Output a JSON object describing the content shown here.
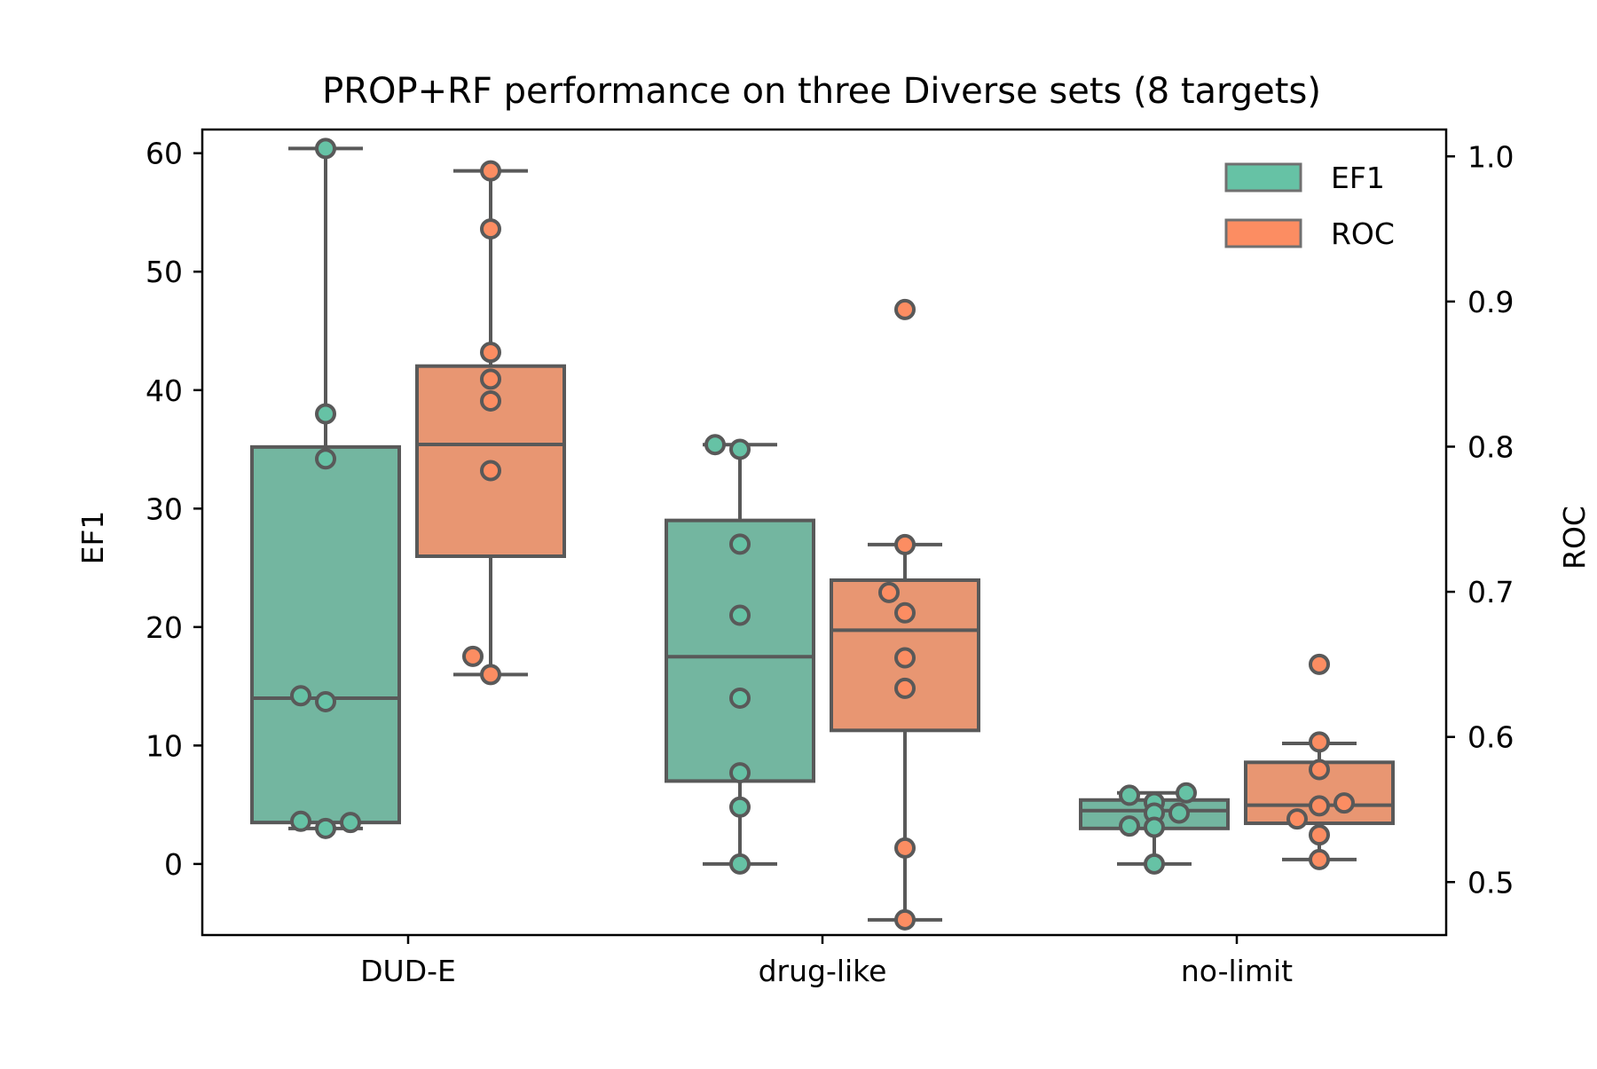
{
  "chart_data": {
    "type": "box",
    "title": "PROP+RF performance on three Diverse sets (8 targets)",
    "xlabel": "",
    "ylabel": "EF1",
    "y2label": "ROC",
    "categories": [
      "DUD-E",
      "drug-like",
      "no-limit"
    ],
    "ylim": [
      -6,
      62
    ],
    "y2lim": [
      0.4635,
      1.0185
    ],
    "yticks": [
      "0",
      "10",
      "20",
      "30",
      "40",
      "50",
      "60"
    ],
    "y2ticks": [
      "0.5",
      "0.6",
      "0.7",
      "0.8",
      "0.9",
      "1.0"
    ],
    "legend": {
      "position": "top-right",
      "entries": [
        "EF1",
        "ROC"
      ]
    },
    "colors": {
      "EF1_fill": "#73b6a0",
      "ROC_fill": "#e89672",
      "EF1_point": "#66c2a5",
      "ROC_point": "#fc8d62",
      "line": "#595959"
    },
    "series": [
      {
        "name": "EF1",
        "axis": "left",
        "boxes": [
          {
            "whislo": 3.0,
            "q1": 3.5,
            "med": 14.0,
            "q3": 35.2,
            "whishi": 60.4
          },
          {
            "whislo": 0.0,
            "q1": 7.0,
            "med": 17.5,
            "q3": 29.0,
            "whishi": 35.4
          },
          {
            "whislo": 0.0,
            "q1": 3.0,
            "med": 4.5,
            "q3": 5.4,
            "whishi": 6.0
          }
        ],
        "points": [
          [
            60.4,
            38.0,
            34.2,
            14.2,
            13.7,
            3.6,
            3.0,
            3.5
          ],
          [
            35.4,
            35.0,
            27.0,
            21.0,
            14.0,
            7.7,
            4.8,
            0.0
          ],
          [
            5.8,
            5.2,
            6.0,
            4.3,
            4.3,
            3.2,
            3.1,
            0.0
          ]
        ]
      },
      {
        "name": "ROC",
        "axis": "right",
        "boxes": [
          {
            "whislo": 0.643,
            "q1": 0.7245,
            "med": 0.8015,
            "q3": 0.8555,
            "whishi": 0.99
          },
          {
            "whislo": 0.474,
            "q1": 0.6045,
            "med": 0.6735,
            "q3": 0.708,
            "whishi": 0.7325
          },
          {
            "whislo": 0.5155,
            "q1": 0.5405,
            "med": 0.553,
            "q3": 0.5825,
            "whishi": 0.5955
          }
        ],
        "points": [
          [
            0.99,
            0.95,
            0.865,
            0.8465,
            0.8315,
            0.7835,
            0.6555,
            0.643
          ],
          [
            0.8945,
            0.7325,
            0.6995,
            0.6855,
            0.6545,
            0.6335,
            0.5235,
            0.474
          ],
          [
            0.65,
            0.5965,
            0.5775,
            0.5545,
            0.5525,
            0.5435,
            0.5325,
            0.5155
          ]
        ]
      }
    ]
  }
}
